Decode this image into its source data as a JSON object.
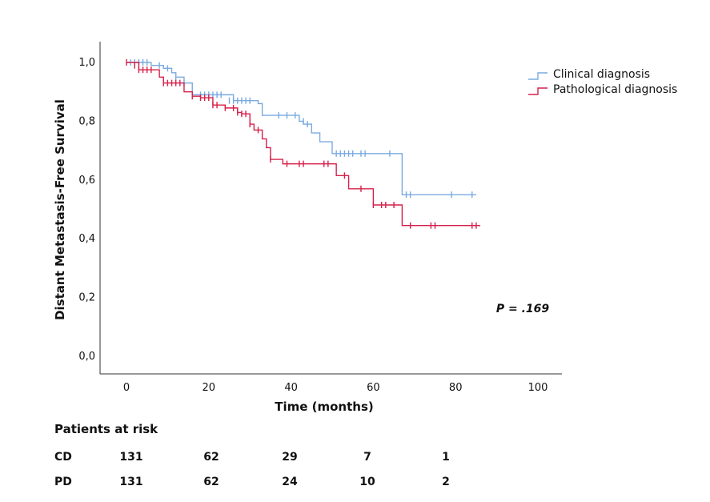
{
  "chart_data": {
    "type": "line",
    "subtype": "kaplan-meier",
    "title": "",
    "xlabel": "Time (months)",
    "ylabel": "Distant Metastasis-Free Survival",
    "xlim": [
      -2,
      106
    ],
    "ylim": [
      0,
      1.0
    ],
    "x_ticks": [
      "0",
      "20",
      "40",
      "60",
      "80",
      "100"
    ],
    "x_tick_values": [
      0,
      20,
      40,
      60,
      80,
      100
    ],
    "y_ticks": [
      "0,0",
      "0,2",
      "0,4",
      "0,6",
      "0,8",
      "1,0"
    ],
    "y_tick_values": [
      0,
      0.2,
      0.4,
      0.6,
      0.8,
      1.0
    ],
    "grid": false,
    "legend_position": "top-right",
    "annotation": "P = .169",
    "series": [
      {
        "name": "Clinical diagnosis",
        "color": "#7aaae0",
        "step_x": [
          0,
          6,
          9,
          11,
          12,
          14,
          16,
          26,
          32,
          33,
          36,
          42,
          43,
          45,
          47,
          50,
          67,
          85
        ],
        "step_y": [
          1.0,
          0.99,
          0.98,
          0.965,
          0.95,
          0.93,
          0.89,
          0.87,
          0.86,
          0.82,
          0.82,
          0.8,
          0.79,
          0.76,
          0.73,
          0.69,
          0.55,
          0.55
        ],
        "censor_x": [
          1,
          2,
          3,
          4,
          5,
          8,
          10,
          12,
          14,
          18,
          19,
          20,
          21,
          22,
          23,
          25,
          26,
          27,
          28,
          29,
          30,
          37,
          39,
          41,
          43,
          44,
          51,
          52,
          53,
          54,
          55,
          57,
          58,
          64,
          68,
          69,
          79,
          84
        ],
        "censor_y": [
          1.0,
          1.0,
          1.0,
          1.0,
          1.0,
          0.99,
          0.98,
          0.95,
          0.93,
          0.89,
          0.89,
          0.89,
          0.89,
          0.89,
          0.89,
          0.87,
          0.87,
          0.87,
          0.87,
          0.87,
          0.87,
          0.82,
          0.82,
          0.82,
          0.8,
          0.79,
          0.69,
          0.69,
          0.69,
          0.69,
          0.69,
          0.69,
          0.69,
          0.69,
          0.55,
          0.55,
          0.55,
          0.55
        ]
      },
      {
        "name": "Pathological diagnosis",
        "color": "#d6204a",
        "step_x": [
          0,
          3,
          8,
          9,
          14,
          16,
          18,
          21,
          24,
          27,
          28,
          30,
          31,
          33,
          34,
          35,
          37,
          38,
          51,
          54,
          60,
          67,
          86
        ],
        "step_y": [
          1.0,
          0.975,
          0.95,
          0.93,
          0.9,
          0.885,
          0.88,
          0.855,
          0.845,
          0.83,
          0.825,
          0.79,
          0.77,
          0.74,
          0.71,
          0.67,
          0.67,
          0.655,
          0.615,
          0.57,
          0.515,
          0.445,
          0.445
        ],
        "censor_x": [
          0,
          2,
          3,
          4,
          5,
          6,
          9,
          10,
          11,
          12,
          13,
          16,
          18,
          19,
          20,
          21,
          22,
          24,
          26,
          27,
          28,
          29,
          30,
          32,
          35,
          39,
          42,
          43,
          48,
          49,
          53,
          57,
          60,
          62,
          63,
          65,
          69,
          74,
          75,
          84,
          85
        ],
        "censor_y": [
          1.0,
          0.99,
          0.975,
          0.975,
          0.975,
          0.975,
          0.93,
          0.93,
          0.93,
          0.93,
          0.93,
          0.885,
          0.88,
          0.88,
          0.88,
          0.855,
          0.855,
          0.845,
          0.845,
          0.83,
          0.825,
          0.825,
          0.79,
          0.77,
          0.67,
          0.655,
          0.655,
          0.655,
          0.655,
          0.655,
          0.615,
          0.57,
          0.515,
          0.515,
          0.515,
          0.515,
          0.445,
          0.445,
          0.445,
          0.445,
          0.445
        ]
      }
    ]
  },
  "risk_table": {
    "title": "Patients at risk",
    "rows": [
      {
        "label": "CD",
        "values": [
          "131",
          "62",
          "29",
          "7",
          "1"
        ]
      },
      {
        "label": "PD",
        "values": [
          "131",
          "62",
          "24",
          "10",
          "2"
        ]
      }
    ]
  }
}
